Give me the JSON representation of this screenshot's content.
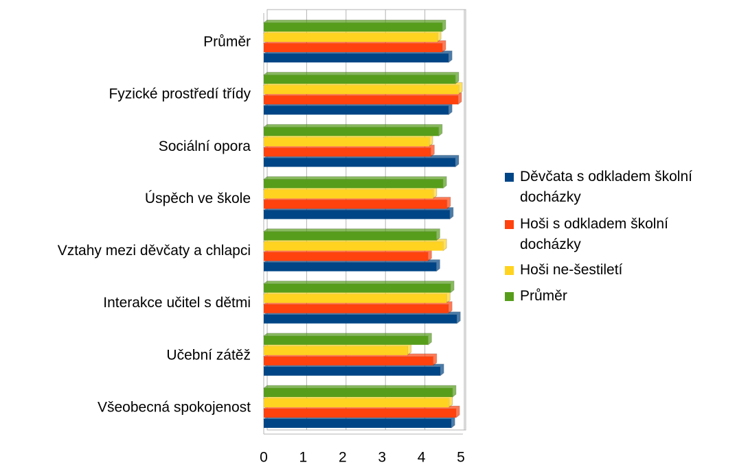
{
  "chart_data": {
    "type": "hbar",
    "categories": [
      "Průměr",
      "Fyzické prostředí třídy",
      "Sociální opora",
      "Úspěch ve škole",
      "Vztahy mezi děvčaty a chlapci",
      "Interakce učitel s dětmi",
      "Učební zátěž",
      "Všeobecná spokojenost"
    ],
    "series": [
      {
        "name": "Děvčata s odkladem školní docházky",
        "color": "#004586",
        "values": [
          4.69,
          4.69,
          4.86,
          4.72,
          4.38,
          4.9,
          4.48,
          4.76
        ]
      },
      {
        "name": "Hoši s odkladem školní docházky",
        "color": "#ff420e",
        "values": [
          4.53,
          4.93,
          4.24,
          4.65,
          4.17,
          4.69,
          4.3,
          4.88
        ]
      },
      {
        "name": "Hoši ne-šestiletí",
        "color": "#ffd320",
        "values": [
          4.41,
          4.95,
          4.2,
          4.3,
          4.55,
          4.64,
          3.65,
          4.7
        ]
      },
      {
        "name": "Průměr",
        "color": "#579d1c",
        "values": [
          4.53,
          4.86,
          4.44,
          4.55,
          4.38,
          4.74,
          4.17,
          4.79
        ]
      }
    ],
    "xlim": [
      0,
      5
    ],
    "xticks": [
      0,
      1,
      2,
      3,
      4,
      5
    ],
    "grid": true,
    "legend": "right"
  }
}
